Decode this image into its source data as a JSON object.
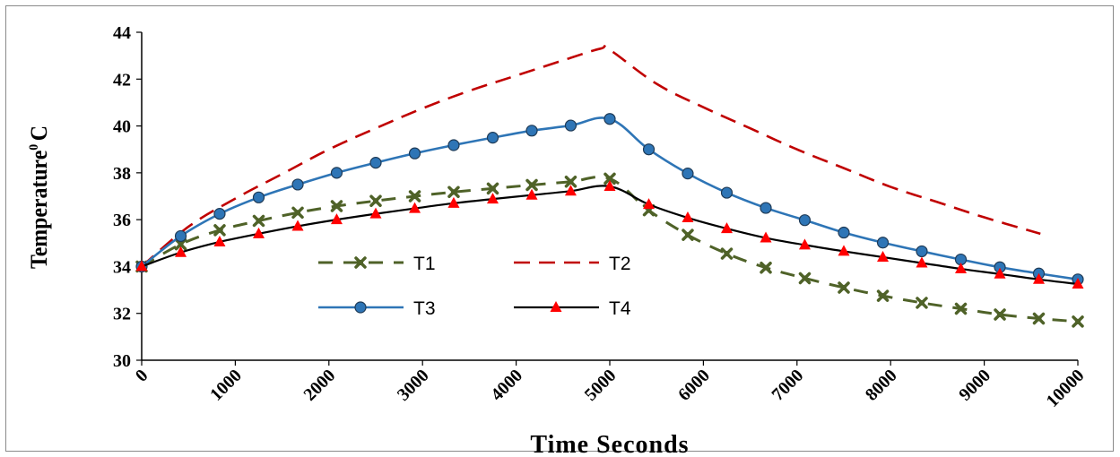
{
  "chart_data": {
    "type": "line",
    "title": "",
    "xlabel": "Time Seconds",
    "ylabel": "Temperature",
    "ylabel_sup": "0",
    "ylabel_unit": "C",
    "xlim": [
      0,
      10000
    ],
    "ylim": [
      30,
      44
    ],
    "x_ticks": [
      "0",
      "1000",
      "2000",
      "3000",
      "4000",
      "5000",
      "6000",
      "7000",
      "8000",
      "9000",
      "10000"
    ],
    "y_ticks": [
      "30",
      "32",
      "34",
      "36",
      "38",
      "40",
      "42",
      "44"
    ],
    "grid": false,
    "legend": "inside-center",
    "series": [
      {
        "name": "T1",
        "color": "#4f6228",
        "style": "dashed",
        "marker": "x",
        "x": [
          0,
          417,
          833,
          1250,
          1667,
          2083,
          2500,
          2917,
          3333,
          3750,
          4167,
          4583,
          5000,
          5417,
          5833,
          6250,
          6667,
          7083,
          7500,
          7917,
          8333,
          8750,
          9167,
          9583,
          10000
        ],
        "y": [
          34.0,
          34.95,
          35.55,
          35.95,
          36.3,
          36.58,
          36.8,
          37.0,
          37.18,
          37.33,
          37.48,
          37.62,
          37.75,
          36.4,
          35.35,
          34.55,
          33.95,
          33.5,
          33.1,
          32.75,
          32.45,
          32.2,
          31.95,
          31.78,
          31.65
        ]
      },
      {
        "name": "T2",
        "color": "#c00000",
        "style": "dashed",
        "marker": "none",
        "x": [
          0,
          500,
          1000,
          1500,
          2000,
          2500,
          3000,
          3500,
          4000,
          4500,
          4900,
          5000,
          5500,
          6000,
          6500,
          7000,
          7500,
          8000,
          8500,
          9000,
          9600
        ],
        "y": [
          34.0,
          35.7,
          36.9,
          37.95,
          39.0,
          39.9,
          40.75,
          41.5,
          42.15,
          42.8,
          43.3,
          43.25,
          41.8,
          40.8,
          39.9,
          39.0,
          38.2,
          37.4,
          36.75,
          36.1,
          35.4
        ]
      },
      {
        "name": "T3",
        "color": "#2e75b6",
        "style": "solid",
        "marker": "circle",
        "x": [
          0,
          417,
          833,
          1250,
          1667,
          2083,
          2500,
          2917,
          3333,
          3750,
          4167,
          4583,
          5000,
          5417,
          5833,
          6250,
          6667,
          7083,
          7500,
          7917,
          8333,
          8750,
          9167,
          9583,
          10000
        ],
        "y": [
          34.0,
          35.3,
          36.25,
          36.95,
          37.5,
          38.0,
          38.43,
          38.83,
          39.18,
          39.5,
          39.8,
          40.02,
          40.3,
          39.0,
          37.97,
          37.15,
          36.5,
          35.98,
          35.45,
          35.02,
          34.65,
          34.3,
          33.97,
          33.7,
          33.45
        ]
      },
      {
        "name": "T4",
        "color": "#000000",
        "style": "solid",
        "marker": "triangle",
        "marker_color": "#ff0000",
        "x": [
          0,
          417,
          833,
          1250,
          1667,
          2083,
          2500,
          2917,
          3333,
          3750,
          4167,
          4583,
          5000,
          5417,
          5833,
          6250,
          6667,
          7083,
          7500,
          7917,
          8333,
          8750,
          9167,
          9583,
          10000
        ],
        "y": [
          34.0,
          34.6,
          35.05,
          35.4,
          35.72,
          36.0,
          36.25,
          36.48,
          36.7,
          36.88,
          37.05,
          37.22,
          37.42,
          36.65,
          36.08,
          35.62,
          35.22,
          34.92,
          34.65,
          34.4,
          34.15,
          33.9,
          33.68,
          33.45,
          33.25
        ]
      }
    ]
  }
}
